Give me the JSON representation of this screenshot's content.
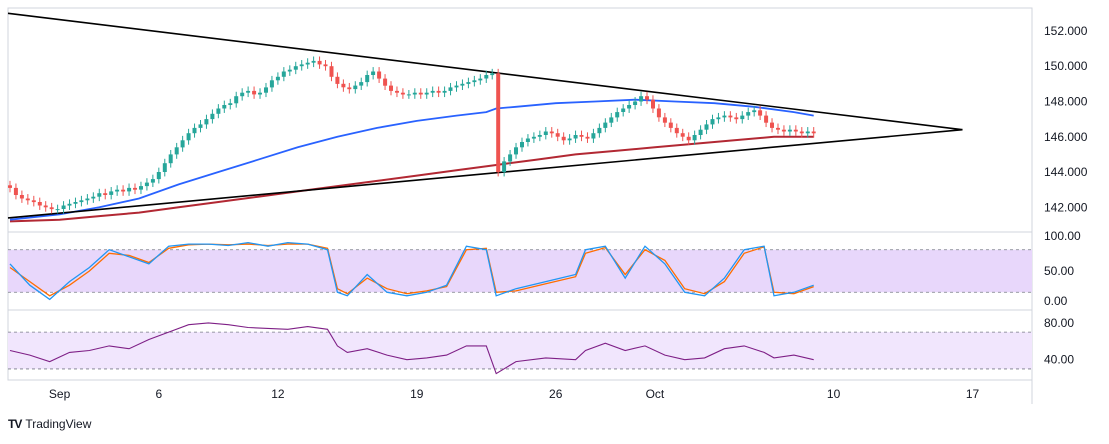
{
  "brand": {
    "logo_text": "TV",
    "name": "TradingView"
  },
  "chart_data": {
    "type": "candlestick",
    "price_axis": {
      "ticks": [
        "152.000",
        "150.000",
        "148.000",
        "146.000",
        "144.000",
        "142.000"
      ],
      "ylim": [
        140.6,
        153.3
      ]
    },
    "time_axis": {
      "ticks": [
        {
          "label": "Sep",
          "day": 1
        },
        {
          "label": "6",
          "day": 6
        },
        {
          "label": "12",
          "day": 12
        },
        {
          "label": "19",
          "day": 19
        },
        {
          "label": "26",
          "day": 26
        },
        {
          "label": "Oct",
          "day": 31
        },
        {
          "label": "10",
          "day": 40
        },
        {
          "label": "17",
          "day": 47
        }
      ],
      "xlim": [
        -1.6,
        50.0
      ]
    },
    "price_close_series": [
      [
        -1.5,
        143.1
      ],
      [
        -1.2,
        142.7
      ],
      [
        -0.9,
        142.5
      ],
      [
        -0.6,
        142.4
      ],
      [
        -0.3,
        142.3
      ],
      [
        0.0,
        142.1
      ],
      [
        0.3,
        142.0
      ],
      [
        0.6,
        141.9
      ],
      [
        0.9,
        141.9
      ],
      [
        1.2,
        142.1
      ],
      [
        1.5,
        142.2
      ],
      [
        1.8,
        142.3
      ],
      [
        2.1,
        142.4
      ],
      [
        2.4,
        142.5
      ],
      [
        2.7,
        142.6
      ],
      [
        3.0,
        142.8
      ],
      [
        3.3,
        142.7
      ],
      [
        3.6,
        142.9
      ],
      [
        3.9,
        143.0
      ],
      [
        4.2,
        142.9
      ],
      [
        4.5,
        143.1
      ],
      [
        4.8,
        143.0
      ],
      [
        5.1,
        143.2
      ],
      [
        5.4,
        143.4
      ],
      [
        5.7,
        143.6
      ],
      [
        6.0,
        144.0
      ],
      [
        6.3,
        144.5
      ],
      [
        6.6,
        145.0
      ],
      [
        6.9,
        145.4
      ],
      [
        7.2,
        145.8
      ],
      [
        7.5,
        146.2
      ],
      [
        7.8,
        146.5
      ],
      [
        8.1,
        146.7
      ],
      [
        8.4,
        147.0
      ],
      [
        8.7,
        147.3
      ],
      [
        9.0,
        147.6
      ],
      [
        9.3,
        147.8
      ],
      [
        9.6,
        147.9
      ],
      [
        9.9,
        148.3
      ],
      [
        10.2,
        148.5
      ],
      [
        10.5,
        148.6
      ],
      [
        10.8,
        148.4
      ],
      [
        11.1,
        148.5
      ],
      [
        11.4,
        148.8
      ],
      [
        11.7,
        149.2
      ],
      [
        12.0,
        149.4
      ],
      [
        12.3,
        149.7
      ],
      [
        12.6,
        149.8
      ],
      [
        12.9,
        150.0
      ],
      [
        13.2,
        150.1
      ],
      [
        13.5,
        150.2
      ],
      [
        13.8,
        150.3
      ],
      [
        14.1,
        150.1
      ],
      [
        14.4,
        150.0
      ],
      [
        14.7,
        149.4
      ],
      [
        15.0,
        149.0
      ],
      [
        15.3,
        148.8
      ],
      [
        15.6,
        148.7
      ],
      [
        15.9,
        148.9
      ],
      [
        16.2,
        149.1
      ],
      [
        16.5,
        149.5
      ],
      [
        16.8,
        149.7
      ],
      [
        17.1,
        149.3
      ],
      [
        17.4,
        148.9
      ],
      [
        17.7,
        148.6
      ],
      [
        18.0,
        148.5
      ],
      [
        18.3,
        148.4
      ],
      [
        18.6,
        148.4
      ],
      [
        18.9,
        148.5
      ],
      [
        19.2,
        148.4
      ],
      [
        19.5,
        148.5
      ],
      [
        19.8,
        148.6
      ],
      [
        20.1,
        148.5
      ],
      [
        20.4,
        148.6
      ],
      [
        20.7,
        148.8
      ],
      [
        21.0,
        148.9
      ],
      [
        21.3,
        149.0
      ],
      [
        21.6,
        149.1
      ],
      [
        21.9,
        149.2
      ],
      [
        22.2,
        149.3
      ],
      [
        22.5,
        149.5
      ],
      [
        22.8,
        149.6
      ],
      [
        23.1,
        144.0
      ],
      [
        23.4,
        144.6
      ],
      [
        23.7,
        145.0
      ],
      [
        24.0,
        145.4
      ],
      [
        24.3,
        145.7
      ],
      [
        24.6,
        145.9
      ],
      [
        24.9,
        146.0
      ],
      [
        25.2,
        146.1
      ],
      [
        25.5,
        146.3
      ],
      [
        25.8,
        146.2
      ],
      [
        26.1,
        146.0
      ],
      [
        26.4,
        145.8
      ],
      [
        26.7,
        145.9
      ],
      [
        27.0,
        146.1
      ],
      [
        27.3,
        146.0
      ],
      [
        27.6,
        145.9
      ],
      [
        27.9,
        146.2
      ],
      [
        28.2,
        146.5
      ],
      [
        28.5,
        146.8
      ],
      [
        28.8,
        147.1
      ],
      [
        29.1,
        147.4
      ],
      [
        29.4,
        147.6
      ],
      [
        29.7,
        147.8
      ],
      [
        30.0,
        148.0
      ],
      [
        30.3,
        148.3
      ],
      [
        30.6,
        148.1
      ],
      [
        30.9,
        147.6
      ],
      [
        31.2,
        147.1
      ],
      [
        31.5,
        146.8
      ],
      [
        31.8,
        146.5
      ],
      [
        32.1,
        146.2
      ],
      [
        32.4,
        146.0
      ],
      [
        32.7,
        145.8
      ],
      [
        33.0,
        146.1
      ],
      [
        33.3,
        146.4
      ],
      [
        33.6,
        146.7
      ],
      [
        33.9,
        147.0
      ],
      [
        34.2,
        147.1
      ],
      [
        34.5,
        147.2
      ],
      [
        34.8,
        147.1
      ],
      [
        35.1,
        147.0
      ],
      [
        35.4,
        147.2
      ],
      [
        35.7,
        147.4
      ],
      [
        36.0,
        147.5
      ],
      [
        36.3,
        147.2
      ],
      [
        36.6,
        146.8
      ],
      [
        36.9,
        146.5
      ],
      [
        37.2,
        146.4
      ],
      [
        37.5,
        146.3
      ],
      [
        37.8,
        146.4
      ],
      [
        38.1,
        146.3
      ],
      [
        38.4,
        146.2
      ],
      [
        38.7,
        146.3
      ],
      [
        39.0,
        146.2
      ]
    ],
    "moving_average_blue": [
      [
        -1.5,
        141.3
      ],
      [
        1.0,
        141.6
      ],
      [
        3.0,
        142.0
      ],
      [
        5.0,
        142.5
      ],
      [
        7.0,
        143.3
      ],
      [
        9.0,
        144.0
      ],
      [
        11.0,
        144.7
      ],
      [
        13.0,
        145.4
      ],
      [
        15.0,
        146.0
      ],
      [
        17.0,
        146.5
      ],
      [
        19.0,
        146.9
      ],
      [
        21.0,
        147.2
      ],
      [
        22.5,
        147.4
      ],
      [
        23.0,
        147.6
      ],
      [
        24.0,
        147.7
      ],
      [
        26.0,
        147.9
      ],
      [
        28.0,
        148.0
      ],
      [
        30.0,
        148.1
      ],
      [
        32.0,
        148.0
      ],
      [
        34.0,
        147.9
      ],
      [
        36.0,
        147.7
      ],
      [
        38.0,
        147.4
      ],
      [
        39.0,
        147.2
      ]
    ],
    "moving_average_red": [
      [
        -1.5,
        141.2
      ],
      [
        1.0,
        141.3
      ],
      [
        3.0,
        141.5
      ],
      [
        5.0,
        141.7
      ],
      [
        7.0,
        142.0
      ],
      [
        9.0,
        142.3
      ],
      [
        11.0,
        142.6
      ],
      [
        13.0,
        142.9
      ],
      [
        15.0,
        143.2
      ],
      [
        17.0,
        143.5
      ],
      [
        19.0,
        143.8
      ],
      [
        21.0,
        144.1
      ],
      [
        23.0,
        144.4
      ],
      [
        25.0,
        144.7
      ],
      [
        27.0,
        145.0
      ],
      [
        29.0,
        145.2
      ],
      [
        31.0,
        145.4
      ],
      [
        33.0,
        145.6
      ],
      [
        35.0,
        145.8
      ],
      [
        37.0,
        146.0
      ],
      [
        39.0,
        146.0
      ]
    ],
    "triangle_upper_line": [
      [
        -1.6,
        153.0
      ],
      [
        46.5,
        146.4
      ]
    ],
    "triangle_lower_line": [
      [
        -1.6,
        141.4
      ],
      [
        46.5,
        146.4
      ]
    ],
    "stochastic": {
      "levels": [
        "100.00",
        "50.00",
        "0.00"
      ],
      "ylim": [
        -5,
        105
      ],
      "overbought": 80,
      "oversold": 20,
      "k": [
        [
          -1.5,
          60
        ],
        [
          -0.5,
          30
        ],
        [
          0.5,
          10
        ],
        [
          1.5,
          35
        ],
        [
          2.5,
          55
        ],
        [
          3.5,
          80
        ],
        [
          4.5,
          70
        ],
        [
          5.5,
          60
        ],
        [
          6.5,
          85
        ],
        [
          7.5,
          88
        ],
        [
          8.5,
          88
        ],
        [
          9.5,
          86
        ],
        [
          10.5,
          90
        ],
        [
          11.5,
          85
        ],
        [
          12.5,
          90
        ],
        [
          13.5,
          88
        ],
        [
          14.5,
          80
        ],
        [
          15.0,
          20
        ],
        [
          15.5,
          15
        ],
        [
          16.5,
          45
        ],
        [
          17.5,
          20
        ],
        [
          18.5,
          15
        ],
        [
          19.5,
          20
        ],
        [
          20.5,
          30
        ],
        [
          21.5,
          85
        ],
        [
          22.5,
          80
        ],
        [
          23.0,
          15
        ],
        [
          24.0,
          25
        ],
        [
          25.5,
          35
        ],
        [
          27.0,
          45
        ],
        [
          27.5,
          80
        ],
        [
          28.5,
          85
        ],
        [
          29.5,
          40
        ],
        [
          30.5,
          85
        ],
        [
          31.5,
          60
        ],
        [
          32.5,
          20
        ],
        [
          33.5,
          15
        ],
        [
          34.5,
          40
        ],
        [
          35.5,
          80
        ],
        [
          36.5,
          85
        ],
        [
          37.0,
          15
        ],
        [
          38.0,
          20
        ],
        [
          39.0,
          30
        ]
      ],
      "d": [
        [
          -1.5,
          55
        ],
        [
          -0.5,
          35
        ],
        [
          0.5,
          15
        ],
        [
          1.5,
          30
        ],
        [
          2.5,
          50
        ],
        [
          3.5,
          75
        ],
        [
          4.5,
          72
        ],
        [
          5.5,
          62
        ],
        [
          6.5,
          82
        ],
        [
          7.5,
          87
        ],
        [
          8.5,
          88
        ],
        [
          9.5,
          87
        ],
        [
          10.5,
          88
        ],
        [
          11.5,
          86
        ],
        [
          12.5,
          88
        ],
        [
          13.5,
          88
        ],
        [
          14.5,
          82
        ],
        [
          15.0,
          25
        ],
        [
          15.5,
          18
        ],
        [
          16.5,
          40
        ],
        [
          17.5,
          25
        ],
        [
          18.5,
          18
        ],
        [
          19.5,
          22
        ],
        [
          20.5,
          28
        ],
        [
          21.5,
          80
        ],
        [
          22.5,
          82
        ],
        [
          23.0,
          20
        ],
        [
          24.0,
          22
        ],
        [
          25.5,
          32
        ],
        [
          27.0,
          42
        ],
        [
          27.5,
          75
        ],
        [
          28.5,
          83
        ],
        [
          29.5,
          45
        ],
        [
          30.5,
          80
        ],
        [
          31.5,
          65
        ],
        [
          32.5,
          25
        ],
        [
          33.5,
          18
        ],
        [
          34.5,
          35
        ],
        [
          35.5,
          75
        ],
        [
          36.5,
          84
        ],
        [
          37.0,
          20
        ],
        [
          38.0,
          18
        ],
        [
          39.0,
          28
        ]
      ]
    },
    "rsi": {
      "levels": [
        "80.00",
        "40.00"
      ],
      "ylim": [
        18,
        94
      ],
      "upper": 70,
      "lower": 30,
      "values": [
        [
          -1.5,
          50
        ],
        [
          -0.5,
          45
        ],
        [
          0.5,
          38
        ],
        [
          1.5,
          48
        ],
        [
          2.5,
          50
        ],
        [
          3.5,
          55
        ],
        [
          4.5,
          52
        ],
        [
          5.5,
          62
        ],
        [
          6.5,
          70
        ],
        [
          7.5,
          78
        ],
        [
          8.5,
          80
        ],
        [
          9.5,
          78
        ],
        [
          10.5,
          75
        ],
        [
          11.5,
          74
        ],
        [
          12.5,
          73
        ],
        [
          13.5,
          76
        ],
        [
          14.5,
          73
        ],
        [
          15.0,
          55
        ],
        [
          15.5,
          48
        ],
        [
          16.5,
          52
        ],
        [
          17.5,
          45
        ],
        [
          18.5,
          40
        ],
        [
          19.5,
          42
        ],
        [
          20.5,
          45
        ],
        [
          21.5,
          55
        ],
        [
          22.5,
          55
        ],
        [
          23.0,
          25
        ],
        [
          24.0,
          38
        ],
        [
          25.5,
          42
        ],
        [
          27.0,
          40
        ],
        [
          27.5,
          50
        ],
        [
          28.5,
          58
        ],
        [
          29.5,
          50
        ],
        [
          30.5,
          55
        ],
        [
          31.5,
          45
        ],
        [
          32.5,
          40
        ],
        [
          33.5,
          42
        ],
        [
          34.5,
          52
        ],
        [
          35.5,
          55
        ],
        [
          36.5,
          48
        ],
        [
          37.0,
          42
        ],
        [
          38.0,
          45
        ],
        [
          39.0,
          40
        ]
      ]
    },
    "colors": {
      "up_candle": "#26a69a",
      "down_candle": "#ef5350",
      "ma_blue": "#2962ff",
      "ma_red": "#b22833",
      "stoch_k": "#2196f3",
      "stoch_d": "#ff6d00",
      "rsi_line": "#7e1f86",
      "band_fill": "#e8d7fb"
    }
  }
}
